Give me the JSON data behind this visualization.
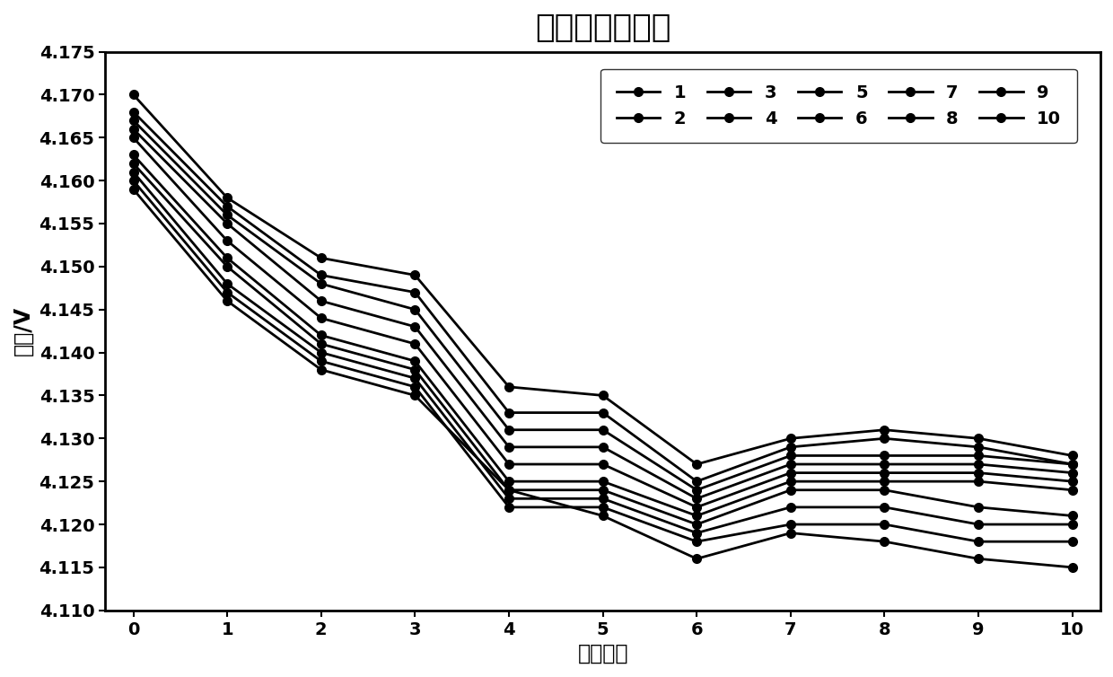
{
  "title": "高温自放电曲线",
  "xlabel": "搞置天数",
  "ylabel": "电压/V",
  "x": [
    0,
    1,
    2,
    3,
    4,
    5,
    6,
    7,
    8,
    9,
    10
  ],
  "series": [
    {
      "label": "1",
      "y": [
        4.17,
        4.158,
        4.151,
        4.149,
        4.136,
        4.135,
        4.127,
        4.13,
        4.131,
        4.13,
        4.128
      ]
    },
    {
      "label": "2",
      "y": [
        4.168,
        4.157,
        4.149,
        4.147,
        4.133,
        4.133,
        4.125,
        4.129,
        4.13,
        4.129,
        4.127
      ]
    },
    {
      "label": "3",
      "y": [
        4.167,
        4.156,
        4.148,
        4.145,
        4.131,
        4.131,
        4.124,
        4.128,
        4.128,
        4.128,
        4.127
      ]
    },
    {
      "label": "4",
      "y": [
        4.166,
        4.155,
        4.146,
        4.143,
        4.129,
        4.129,
        4.123,
        4.127,
        4.127,
        4.127,
        4.126
      ]
    },
    {
      "label": "5",
      "y": [
        4.165,
        4.153,
        4.144,
        4.141,
        4.127,
        4.127,
        4.122,
        4.126,
        4.126,
        4.126,
        4.125
      ]
    },
    {
      "label": "6",
      "y": [
        4.163,
        4.151,
        4.142,
        4.139,
        4.125,
        4.125,
        4.121,
        4.125,
        4.125,
        4.125,
        4.124
      ]
    },
    {
      "label": "7",
      "y": [
        4.162,
        4.15,
        4.141,
        4.138,
        4.124,
        4.124,
        4.12,
        4.124,
        4.124,
        4.122,
        4.121
      ]
    },
    {
      "label": "8",
      "y": [
        4.161,
        4.148,
        4.14,
        4.137,
        4.123,
        4.123,
        4.119,
        4.122,
        4.122,
        4.12,
        4.12
      ]
    },
    {
      "label": "9",
      "y": [
        4.16,
        4.147,
        4.139,
        4.136,
        4.122,
        4.122,
        4.118,
        4.12,
        4.12,
        4.118,
        4.118
      ]
    },
    {
      "label": "10",
      "y": [
        4.159,
        4.146,
        4.138,
        4.135,
        4.124,
        4.121,
        4.116,
        4.119,
        4.118,
        4.116,
        4.115
      ]
    }
  ],
  "ylim": [
    4.11,
    4.175
  ],
  "yticks": [
    4.11,
    4.115,
    4.12,
    4.125,
    4.13,
    4.135,
    4.14,
    4.145,
    4.15,
    4.155,
    4.16,
    4.165,
    4.17,
    4.175
  ],
  "xticks": [
    0,
    1,
    2,
    3,
    4,
    5,
    6,
    7,
    8,
    9,
    10
  ],
  "line_color": "#000000",
  "marker": "o",
  "marker_size": 7,
  "linewidth": 2.0,
  "background_color": "#ffffff",
  "title_fontsize": 26,
  "axis_label_fontsize": 17,
  "tick_fontsize": 14,
  "legend_fontsize": 14
}
